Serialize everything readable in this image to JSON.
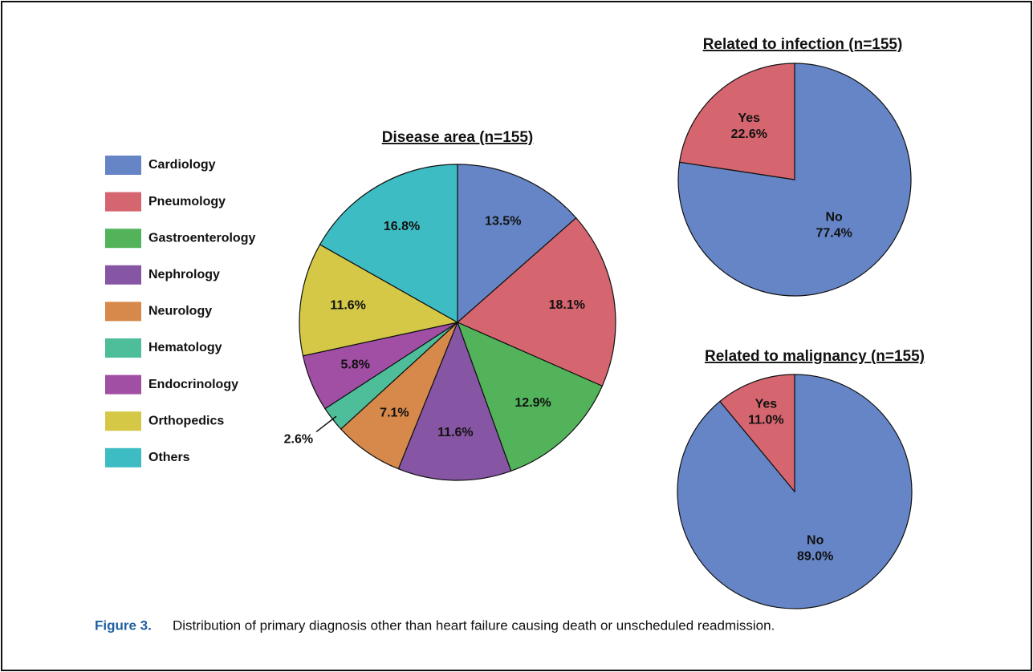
{
  "chart_data": [
    {
      "type": "pie",
      "title": "Disease area (n=155)",
      "legend": true,
      "categories": [
        "Cardiology",
        "Pneumology",
        "Gastroenterology",
        "Nephrology",
        "Neurology",
        "Hematology",
        "Endocrinology",
        "Orthopedics",
        "Others"
      ],
      "values": [
        13.5,
        18.1,
        12.9,
        11.6,
        7.1,
        2.6,
        5.8,
        11.6,
        16.8
      ],
      "value_labels": [
        "13.5%",
        "18.1%",
        "12.9%",
        "11.6%",
        "7.1%",
        "2.6%",
        "5.8%",
        "11.6%",
        "16.8%"
      ],
      "colors": [
        "#6585c6",
        "#d5656f",
        "#52b35a",
        "#8655a3",
        "#d6894a",
        "#4dbd9a",
        "#a14fa4",
        "#d4c846",
        "#3dbcc3"
      ]
    },
    {
      "type": "pie",
      "title": "Related to infection (n=155)",
      "legend": false,
      "categories": [
        "No",
        "Yes"
      ],
      "values": [
        77.4,
        22.6
      ],
      "value_labels": [
        "77.4%",
        "22.6%"
      ],
      "colors": [
        "#6585c6",
        "#d5656f"
      ]
    },
    {
      "type": "pie",
      "title": "Related to malignancy (n=155)",
      "legend": false,
      "categories": [
        "No",
        "Yes"
      ],
      "values": [
        89.0,
        11.0
      ],
      "value_labels": [
        "89.0%",
        "11.0%"
      ],
      "colors": [
        "#6585c6",
        "#d5656f"
      ]
    }
  ],
  "caption": {
    "label": "Figure 3.",
    "text": "Distribution of primary diagnosis other than heart failure causing death or unscheduled readmission."
  }
}
